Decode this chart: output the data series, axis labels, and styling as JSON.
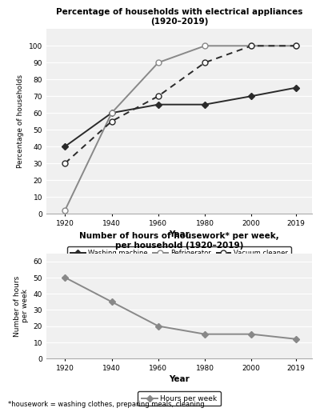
{
  "years": [
    1920,
    1940,
    1960,
    1980,
    2000,
    2019
  ],
  "washing_machine": [
    40,
    60,
    65,
    65,
    70,
    75
  ],
  "refrigerator": [
    2,
    60,
    90,
    100,
    100,
    100
  ],
  "vacuum_cleaner": [
    30,
    55,
    70,
    90,
    100,
    100
  ],
  "hours_per_week": [
    50,
    35,
    20,
    15,
    15,
    12
  ],
  "chart1_title": "Percentage of households with electrical appliances\n(1920–2019)",
  "chart1_ylabel": "Percentage of households",
  "chart1_xlabel": "Year",
  "chart1_ylim": [
    0,
    110
  ],
  "chart1_yticks": [
    0,
    10,
    20,
    30,
    40,
    50,
    60,
    70,
    80,
    90,
    100
  ],
  "chart2_title": "Number of hours of housework* per week,\nper household (1920–2019)",
  "chart2_ylabel": "Number of hours\nper week",
  "chart2_xlabel": "Year",
  "chart2_ylim": [
    0,
    65
  ],
  "chart2_yticks": [
    0,
    10,
    20,
    30,
    40,
    50,
    60
  ],
  "footnote": "*housework = washing clothes, preparing meals, cleaning",
  "line_color_dark": "#2a2a2a",
  "line_color_gray": "#888888",
  "bg_color": "#f0f0f0"
}
